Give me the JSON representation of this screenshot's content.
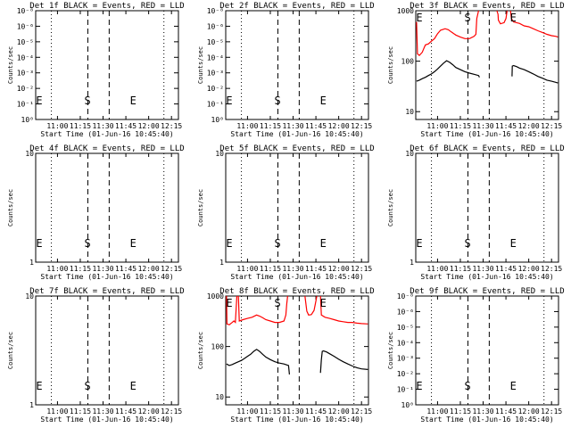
{
  "colors": {
    "black_series": "#000000",
    "red_series": "#ff0000",
    "axes": "#000000",
    "background": "#ffffff"
  },
  "chart_data": [
    {
      "type": "line",
      "title": "Det 1f BLACK = Events, RED = LLD",
      "xlabel": "Start Time (01-Jun-16 10:45:40)",
      "ylabel": "Counts/sec",
      "x_tick_labels": [
        "11:00",
        "11:15",
        "11:30",
        "11:45",
        "12:00",
        "12:15"
      ],
      "y_scale": "log",
      "y_tick_labels": [
        "10⁰",
        "10⁻¹",
        "10⁻²",
        "10⁻³",
        "10⁻⁴",
        "10⁻⁵",
        "10⁻⁶",
        "10⁻⁸"
      ],
      "markers": [
        "E",
        "S",
        "E"
      ],
      "series": []
    },
    {
      "type": "line",
      "title": "Det 2f BLACK = Events, RED = LLD",
      "xlabel": "Start Time (01-Jun-16 10:45:40)",
      "ylabel": "Counts/sec",
      "x_tick_labels": [
        "11:00",
        "11:15",
        "11:30",
        "11:45",
        "12:00",
        "12:15"
      ],
      "y_scale": "log",
      "y_tick_labels": [
        "10⁰",
        "10⁻¹",
        "10⁻²",
        "10⁻³",
        "10⁻⁴",
        "10⁻⁵",
        "10⁻⁶",
        "10⁻⁸"
      ],
      "markers": [
        "E",
        "S",
        "E"
      ],
      "series": []
    },
    {
      "type": "line",
      "title": "Det 3f BLACK = Events, RED = LLD",
      "xlabel": "Start Time (01-Jun-16 10:45:40)",
      "ylabel": "Counts/sec",
      "x_tick_labels": [
        "11:00",
        "11:15",
        "11:30",
        "11:45",
        "12:00",
        "12:15"
      ],
      "y_scale": "log",
      "y_tick_labels": [
        "10",
        "100",
        "1000"
      ],
      "markers": [
        "E",
        "S",
        "E"
      ],
      "series": [
        {
          "color": "red",
          "segments": [
            [
              [
                10.77,
                600
              ],
              [
                10.78,
                140
              ],
              [
                10.8,
                130
              ],
              [
                10.833,
                150
              ],
              [
                10.85,
                180
              ],
              [
                10.867,
                210
              ],
              [
                10.9,
                220
              ],
              [
                10.933,
                250
              ],
              [
                10.967,
                280
              ],
              [
                11.0,
                350
              ],
              [
                11.033,
                410
              ],
              [
                11.083,
                440
              ],
              [
                11.117,
                420
              ],
              [
                11.15,
                380
              ],
              [
                11.2,
                330
              ],
              [
                11.25,
                300
              ],
              [
                11.3,
                280
              ],
              [
                11.35,
                280
              ],
              [
                11.4,
                310
              ],
              [
                11.42,
                340
              ],
              [
                11.43,
                700
              ],
              [
                11.45,
                1000
              ]
            ],
            [
              [
                11.65,
                1000
              ],
              [
                11.663,
                850
              ],
              [
                11.667,
                650
              ],
              [
                11.69,
                550
              ],
              [
                11.73,
                580
              ],
              [
                11.75,
                700
              ],
              [
                11.763,
                1000
              ]
            ],
            [
              [
                11.8,
                1000
              ],
              [
                11.81,
                700
              ],
              [
                11.833,
                600
              ],
              [
                11.867,
                580
              ],
              [
                11.9,
                560
              ],
              [
                11.95,
                500
              ],
              [
                12.0,
                480
              ],
              [
                12.05,
                440
              ],
              [
                12.1,
                400
              ],
              [
                12.15,
                370
              ],
              [
                12.2,
                340
              ],
              [
                12.25,
                320
              ],
              [
                12.3,
                310
              ],
              [
                12.32,
                300
              ]
            ]
          ]
        },
        {
          "color": "black",
          "segments": [
            [
              [
                10.77,
                40
              ],
              [
                10.8,
                42
              ],
              [
                10.833,
                45
              ],
              [
                10.867,
                48
              ],
              [
                10.9,
                52
              ],
              [
                10.933,
                56
              ],
              [
                10.967,
                62
              ],
              [
                11.0,
                70
              ],
              [
                11.033,
                80
              ],
              [
                11.067,
                92
              ],
              [
                11.1,
                102
              ],
              [
                11.133,
                95
              ],
              [
                11.167,
                85
              ],
              [
                11.2,
                75
              ],
              [
                11.25,
                68
              ],
              [
                11.3,
                62
              ],
              [
                11.35,
                58
              ],
              [
                11.4,
                55
              ],
              [
                11.45,
                52
              ],
              [
                11.46,
                48
              ]
            ],
            [
              [
                11.817,
                50
              ],
              [
                11.82,
                80
              ],
              [
                11.833,
                82
              ],
              [
                11.867,
                78
              ],
              [
                11.9,
                73
              ],
              [
                11.95,
                68
              ],
              [
                12.0,
                62
              ],
              [
                12.05,
                56
              ],
              [
                12.1,
                50
              ],
              [
                12.15,
                46
              ],
              [
                12.2,
                42
              ],
              [
                12.25,
                40
              ],
              [
                12.3,
                38
              ],
              [
                12.32,
                37
              ]
            ]
          ]
        }
      ]
    },
    {
      "type": "line",
      "title": "Det 4f BLACK = Events, RED = LLD",
      "xlabel": "Start Time (01-Jun-16 10:45:40)",
      "ylabel": "Counts/sec",
      "x_tick_labels": [
        "11:00",
        "11:15",
        "11:30",
        "11:45",
        "12:00",
        "12:15"
      ],
      "y_scale": "log",
      "y_tick_labels": [
        "1",
        "10"
      ],
      "markers": [
        "E",
        "S",
        "E"
      ],
      "series": []
    },
    {
      "type": "line",
      "title": "Det 5f BLACK = Events, RED = LLD",
      "xlabel": "Start Time (01-Jun-16 10:45:40)",
      "ylabel": "Counts/sec",
      "x_tick_labels": [
        "11:00",
        "11:15",
        "11:30",
        "11:45",
        "12:00",
        "12:15"
      ],
      "y_scale": "log",
      "y_tick_labels": [
        "1",
        "10"
      ],
      "markers": [
        "E",
        "S",
        "E"
      ],
      "series": []
    },
    {
      "type": "line",
      "title": "Det 6f BLACK = Events, RED = LLD",
      "xlabel": "Start Time (01-Jun-16 10:45:40)",
      "ylabel": "Counts/sec",
      "x_tick_labels": [
        "11:00",
        "11:15",
        "11:30",
        "11:45",
        "12:00",
        "12:15"
      ],
      "y_scale": "log",
      "y_tick_labels": [
        "1",
        "10"
      ],
      "markers": [
        "E",
        "S",
        "E"
      ],
      "series": []
    },
    {
      "type": "line",
      "title": "Det 7f BLACK = Events, RED = LLD",
      "xlabel": "Start Time (01-Jun-16 10:45:40)",
      "ylabel": "Counts/sec",
      "x_tick_labels": [
        "11:00",
        "11:15",
        "11:30",
        "11:45",
        "12:00",
        "12:15"
      ],
      "y_scale": "log",
      "y_tick_labels": [
        "1",
        "10"
      ],
      "markers": [
        "E",
        "S",
        "E"
      ],
      "series": []
    },
    {
      "type": "line",
      "title": "Det 8f BLACK = Events, RED = LLD",
      "xlabel": "Start Time (01-Jun-16 10:45:40)",
      "ylabel": "Counts/sec",
      "x_tick_labels": [
        "11:00",
        "11:15",
        "11:30",
        "11:45",
        "12:00",
        "12:15"
      ],
      "y_scale": "log",
      "y_tick_labels": [
        "10",
        "100",
        "1000"
      ],
      "markers": [
        "E",
        "S",
        "E"
      ],
      "series": [
        {
          "color": "red",
          "segments": [
            [
              [
                10.77,
                1000
              ],
              [
                10.775,
                280
              ],
              [
                10.8,
                270
              ],
              [
                10.833,
                300
              ],
              [
                10.85,
                320
              ],
              [
                10.867,
                300
              ],
              [
                10.883,
                1000
              ]
            ],
            [
              [
                10.9,
                1000
              ],
              [
                10.91,
                320
              ],
              [
                10.95,
                340
              ],
              [
                11.0,
                360
              ],
              [
                11.05,
                380
              ],
              [
                11.1,
                420
              ],
              [
                11.133,
                400
              ],
              [
                11.167,
                370
              ],
              [
                11.2,
                340
              ],
              [
                11.25,
                320
              ],
              [
                11.3,
                300
              ],
              [
                11.35,
                300
              ],
              [
                11.4,
                320
              ],
              [
                11.42,
                420
              ],
              [
                11.43,
                700
              ],
              [
                11.44,
                1000
              ]
            ],
            [
              [
                11.63,
                1000
              ],
              [
                11.65,
                500
              ],
              [
                11.67,
                420
              ],
              [
                11.7,
                430
              ],
              [
                11.73,
                520
              ],
              [
                11.75,
                800
              ],
              [
                11.76,
                1000
              ]
            ],
            [
              [
                11.8,
                1000
              ],
              [
                11.81,
                420
              ],
              [
                11.85,
                380
              ],
              [
                11.9,
                360
              ],
              [
                11.95,
                340
              ],
              [
                12.0,
                320
              ],
              [
                12.05,
                310
              ],
              [
                12.1,
                300
              ],
              [
                12.15,
                300
              ],
              [
                12.2,
                290
              ],
              [
                12.25,
                285
              ],
              [
                12.32,
                280
              ]
            ]
          ]
        },
        {
          "color": "black",
          "segments": [
            [
              [
                10.77,
                45
              ],
              [
                10.8,
                42
              ],
              [
                10.833,
                44
              ],
              [
                10.867,
                47
              ],
              [
                10.9,
                50
              ],
              [
                10.933,
                53
              ],
              [
                10.967,
                58
              ],
              [
                11.0,
                64
              ],
              [
                11.033,
                70
              ],
              [
                11.067,
                80
              ],
              [
                11.1,
                88
              ],
              [
                11.133,
                80
              ],
              [
                11.167,
                70
              ],
              [
                11.2,
                62
              ],
              [
                11.25,
                55
              ],
              [
                11.3,
                50
              ],
              [
                11.35,
                47
              ],
              [
                11.4,
                45
              ],
              [
                11.45,
                42
              ],
              [
                11.46,
                28
              ]
            ],
            [
              [
                11.8,
                30
              ],
              [
                11.81,
                55
              ],
              [
                11.82,
                80
              ],
              [
                11.833,
                82
              ],
              [
                11.867,
                78
              ],
              [
                11.9,
                72
              ],
              [
                11.95,
                64
              ],
              [
                12.0,
                56
              ],
              [
                12.05,
                50
              ],
              [
                12.1,
                45
              ],
              [
                12.15,
                41
              ],
              [
                12.2,
                38
              ],
              [
                12.25,
                36
              ],
              [
                12.32,
                35
              ]
            ]
          ]
        }
      ]
    },
    {
      "type": "line",
      "title": "Det 9f BLACK = Events, RED = LLD",
      "xlabel": "Start Time (01-Jun-16 10:45:40)",
      "ylabel": "Counts/sec",
      "x_tick_labels": [
        "11:00",
        "11:15",
        "11:30",
        "11:45",
        "12:00",
        "12:15"
      ],
      "y_scale": "log",
      "y_tick_labels": [
        "10⁰",
        "10⁻¹",
        "10⁻²",
        "10⁻³",
        "10⁻⁴",
        "10⁻⁵",
        "10⁻⁶",
        "10⁻⁸"
      ],
      "markers": [
        "E",
        "S",
        "E"
      ],
      "series": []
    }
  ]
}
